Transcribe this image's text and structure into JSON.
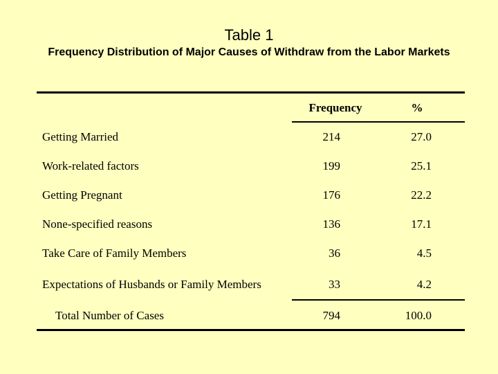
{
  "title": "Table 1",
  "subtitle": "Frequency Distribution of Major Causes of Withdraw from the Labor Markets",
  "columns": {
    "frequency": "Frequency",
    "percent": "%"
  },
  "rows": [
    {
      "label": "Getting Married",
      "frequency": "214",
      "percent": "27.0"
    },
    {
      "label": "Work-related factors",
      "frequency": "199",
      "percent": "25.1"
    },
    {
      "label": "Getting Pregnant",
      "frequency": "176",
      "percent": "22.2"
    },
    {
      "label": "None-specified reasons",
      "frequency": "136",
      "percent": "17.1"
    },
    {
      "label": "Take Care of Family Members",
      "frequency": "36",
      "percent": "4.5"
    },
    {
      "label": "Expectations of Husbands or Family Members",
      "frequency": "33",
      "percent": "4.2"
    }
  ],
  "total": {
    "label": "Total Number of Cases",
    "frequency": "794",
    "percent": "100.0"
  }
}
